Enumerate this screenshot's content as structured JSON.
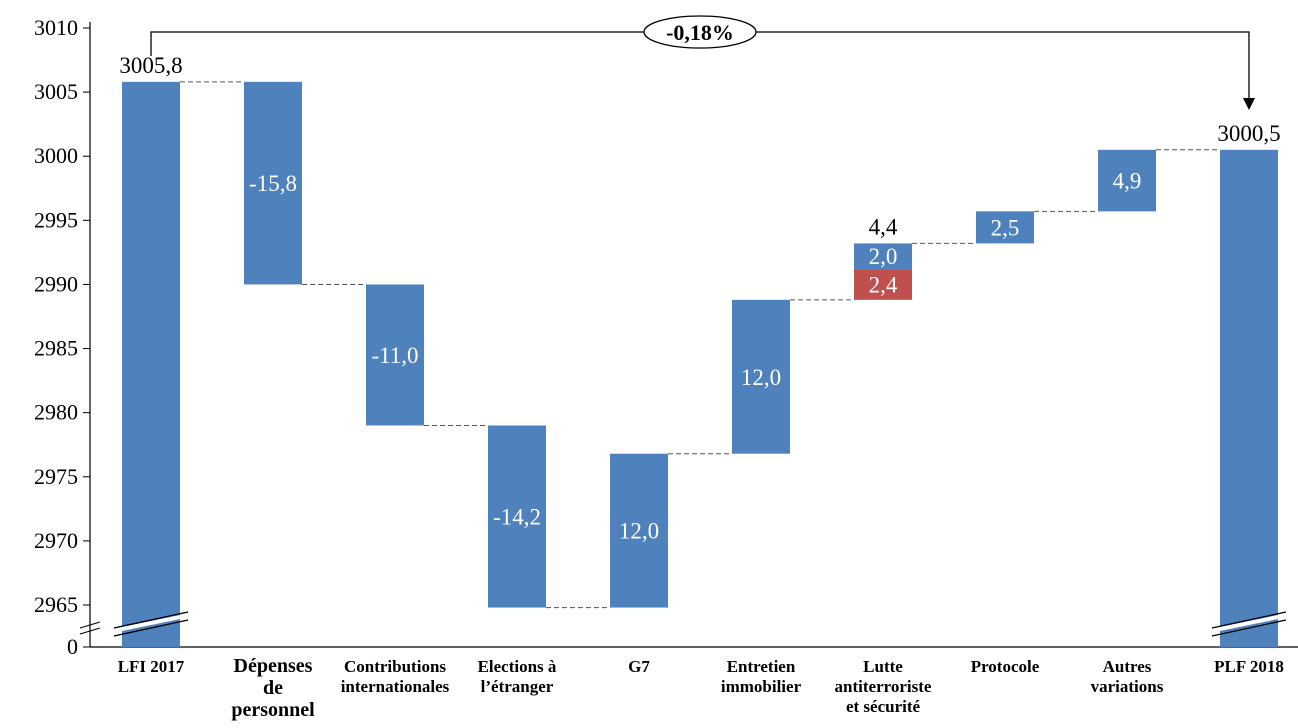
{
  "chart_data": {
    "type": "bar",
    "subtype": "waterfall",
    "y_axis_break": true,
    "ylim": [
      2965,
      3010
    ],
    "yticks": [
      "0",
      "2965",
      "2970",
      "2975",
      "2980",
      "2985",
      "2990",
      "2995",
      "3000",
      "3005",
      "3010"
    ],
    "categories": [
      [
        "LFI 2017"
      ],
      [
        "Dépenses",
        "de",
        "personnel"
      ],
      [
        "Contributions",
        "internationales"
      ],
      [
        "Elections à",
        "l’étranger"
      ],
      [
        "G7"
      ],
      [
        "Entretien",
        "immobilier"
      ],
      [
        "Lutte",
        "antiterroriste",
        "et sécurité"
      ],
      [
        "Protocole"
      ],
      [
        "Autres",
        "variations"
      ],
      [
        "PLF 2018"
      ]
    ],
    "bars": [
      {
        "kind": "total",
        "bottom": 0,
        "top": 3005.8,
        "label": "3005,8",
        "label_position": "above"
      },
      {
        "kind": "step",
        "bottom": 2990.0,
        "top": 3005.8,
        "label": "-15,8",
        "label_position": "inside"
      },
      {
        "kind": "step",
        "bottom": 2979.0,
        "top": 2990.0,
        "label": "-11,0",
        "label_position": "inside"
      },
      {
        "kind": "step",
        "bottom": 2964.8,
        "top": 2979.0,
        "label": "-14,2",
        "label_position": "inside"
      },
      {
        "kind": "step",
        "bottom": 2964.8,
        "top": 2976.8,
        "label": "12,0",
        "label_position": "inside"
      },
      {
        "kind": "step",
        "bottom": 2976.8,
        "top": 2988.8,
        "label": "12,0",
        "label_position": "inside"
      },
      {
        "kind": "stacked",
        "segments": [
          {
            "bottom": 2988.8,
            "top": 2991.2,
            "label": "2,4",
            "color": "#c0504d"
          },
          {
            "bottom": 2991.2,
            "top": 2993.2,
            "label": "2,0",
            "color": "#4f81bd"
          }
        ],
        "total_label": "4,4"
      },
      {
        "kind": "step",
        "bottom": 2993.2,
        "top": 2995.7,
        "label": "2,5",
        "label_position": "inside"
      },
      {
        "kind": "step",
        "bottom": 2995.7,
        "top": 3000.5,
        "label": "4,9",
        "label_position": "inside"
      },
      {
        "kind": "total",
        "bottom": 0,
        "top": 3000.5,
        "label": "3000,5",
        "label_position": "above"
      }
    ],
    "change_annotation": "-0,18%",
    "colors": {
      "bar": "#4f81bd",
      "alt": "#c0504d"
    }
  }
}
